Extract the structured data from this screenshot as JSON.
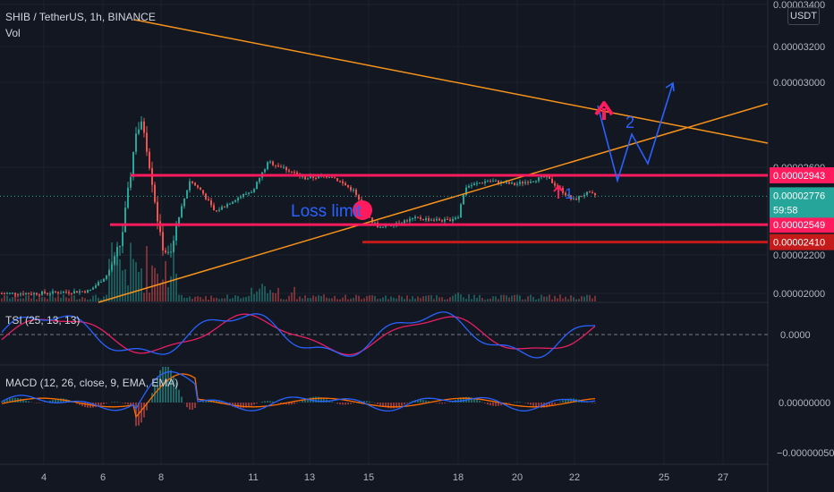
{
  "header": {
    "symbol": "SHIB / TetherUS, 1h, BINANCE",
    "vol_label": "Vol",
    "tsi_label": "TSI (25, 13, 13)",
    "macd_label": "MACD (12, 26, close, 9, EMA, EMA)",
    "currency": "USDT"
  },
  "colors": {
    "background": "#131722",
    "bull": "#26a69a",
    "bear": "#ef5350",
    "trendline": "#f7931a",
    "level_pink": "#ff1b5e",
    "level_red": "#c41a1a",
    "projection": "#2962ff",
    "tsi_line": "#2962ff",
    "tsi_signal": "#e91e63",
    "macd_line": "#2962ff",
    "macd_signal": "#ff6d00"
  },
  "chart_data": {
    "type": "candlestick",
    "x_ticks": [
      "4",
      "6",
      "8",
      "11",
      "13",
      "15",
      "18",
      "20",
      "22",
      "25",
      "27"
    ],
    "y_ticks": [
      "0.00003400",
      "0.00003200",
      "0.00003000",
      "0.00002600",
      "0.00002200",
      "0.00002000"
    ],
    "ylim": [
      1.985e-05,
      3.42e-05
    ],
    "levels": [
      {
        "value": 2.943e-05,
        "label": "0.00002943",
        "color": "level_pink"
      },
      {
        "value": 2.549e-05,
        "label": "0.00002549",
        "color": "level_pink"
      },
      {
        "value": 2.41e-05,
        "label": "0.00002410",
        "color": "level_red"
      }
    ],
    "last_price": {
      "value": 2.776e-05,
      "label": "0.00002776",
      "countdown": "59:58"
    },
    "annotations": {
      "loss_limit": "Loss limit",
      "mark_1": "1",
      "mark_2": "2"
    },
    "tsi": {
      "tick": "0.0000"
    },
    "macd": {
      "ticks": [
        "0.00000000",
        "−0.00000050"
      ]
    }
  }
}
